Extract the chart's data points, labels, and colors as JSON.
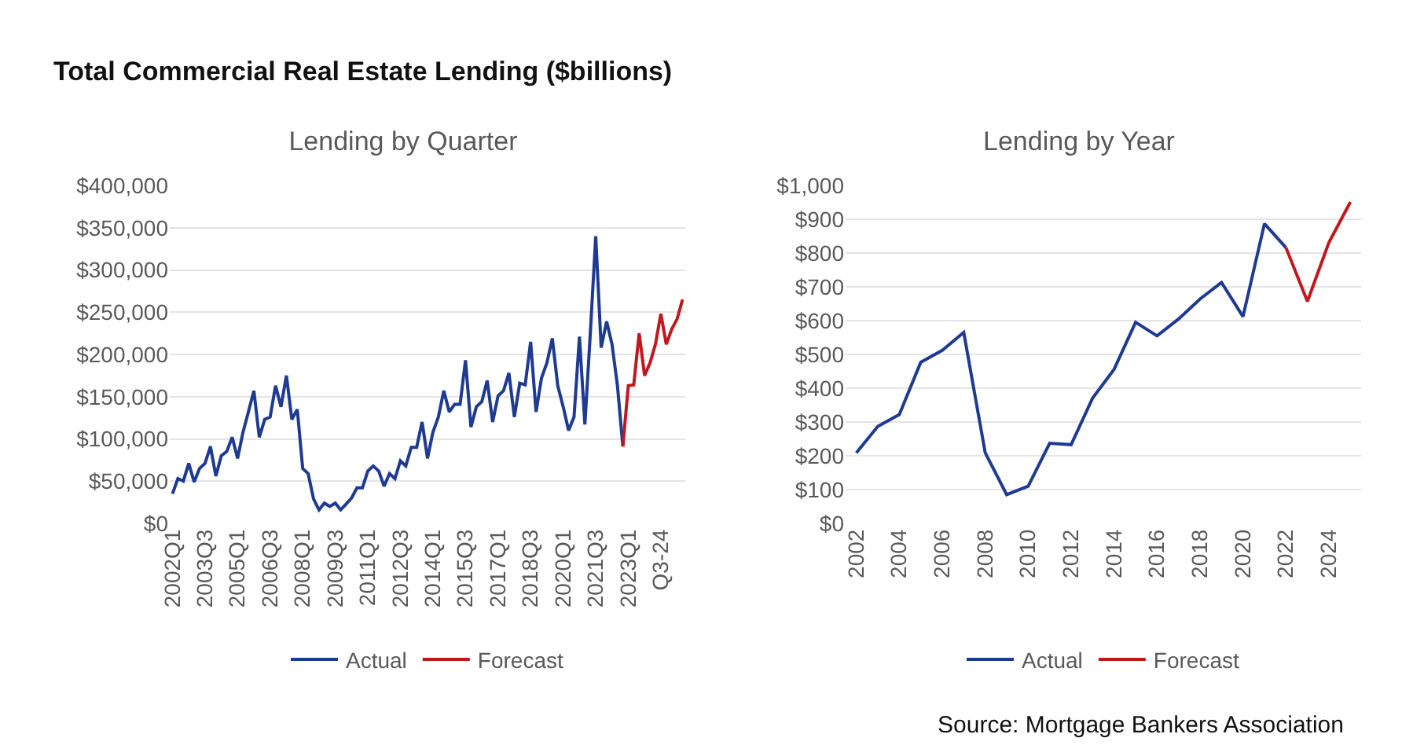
{
  "chart_data": [
    {
      "type": "line",
      "title": "Total Commercial Real Estate Lending ($billions)",
      "subtitle": "Lending by Quarter",
      "categories": [
        "2002Q1",
        null,
        null,
        null,
        null,
        null,
        "2003Q3",
        null,
        null,
        null,
        null,
        null,
        "2005Q1",
        null,
        null,
        null,
        null,
        null,
        "2006Q3",
        null,
        null,
        null,
        null,
        null,
        "2008Q1",
        null,
        null,
        null,
        null,
        null,
        "2009Q3",
        null,
        null,
        null,
        null,
        null,
        "2011Q1",
        null,
        null,
        null,
        null,
        null,
        "2012Q3",
        null,
        null,
        null,
        null,
        null,
        "2014Q1",
        null,
        null,
        null,
        null,
        null,
        "2015Q3",
        null,
        null,
        null,
        null,
        null,
        "2017Q1",
        null,
        null,
        null,
        null,
        null,
        "2018Q3",
        null,
        null,
        null,
        null,
        null,
        "2020Q1",
        null,
        null,
        null,
        null,
        null,
        "2021Q3",
        null,
        null,
        null,
        null,
        null,
        "2023Q1",
        null,
        null,
        null,
        null,
        null,
        "Q3-24",
        null,
        null,
        null,
        null
      ],
      "series": [
        {
          "name": "Actual",
          "color": "#1f3a93",
          "values": [
            35000,
            53000,
            50000,
            71000,
            49000,
            65000,
            71000,
            91000,
            56000,
            80000,
            85000,
            102000,
            77000,
            108000,
            132000,
            157000,
            102000,
            123000,
            126000,
            163000,
            138000,
            175000,
            123000,
            135000,
            65000,
            59000,
            29000,
            16000,
            24000,
            20000,
            24000,
            16000,
            23000,
            30000,
            42000,
            42000,
            62000,
            68000,
            62000,
            44000,
            59000,
            53000,
            74000,
            68000,
            90000,
            90000,
            120000,
            77000,
            108000,
            126000,
            157000,
            132000,
            141000,
            141000,
            193000,
            114000,
            138000,
            144000,
            169000,
            120000,
            151000,
            157000,
            178000,
            126000,
            166000,
            164000,
            215000,
            132000,
            172000,
            190000,
            219000,
            163000,
            138000,
            110000,
            126000,
            221000,
            117000,
            225000,
            340000,
            208000,
            239000,
            212000,
            163000,
            91000,
            null,
            null,
            null,
            null,
            null,
            null,
            null,
            null,
            null,
            null,
            null
          ]
        },
        {
          "name": "Forecast",
          "color": "#c0181f",
          "values": [
            null,
            null,
            null,
            null,
            null,
            null,
            null,
            null,
            null,
            null,
            null,
            null,
            null,
            null,
            null,
            null,
            null,
            null,
            null,
            null,
            null,
            null,
            null,
            null,
            null,
            null,
            null,
            null,
            null,
            null,
            null,
            null,
            null,
            null,
            null,
            null,
            null,
            null,
            null,
            null,
            null,
            null,
            null,
            null,
            null,
            null,
            null,
            null,
            null,
            null,
            null,
            null,
            null,
            null,
            null,
            null,
            null,
            null,
            null,
            null,
            null,
            null,
            null,
            null,
            null,
            null,
            null,
            null,
            null,
            null,
            null,
            null,
            null,
            null,
            null,
            null,
            null,
            null,
            null,
            null,
            null,
            null,
            null,
            91000,
            163000,
            164000,
            225000,
            175000,
            190000,
            212000,
            248000,
            212000,
            230000,
            242000,
            265000
          ]
        }
      ],
      "ylim": [
        0,
        400000
      ],
      "yticks": [
        {
          "value": 0,
          "label": "$0"
        },
        {
          "value": 50000,
          "label": "$50,000"
        },
        {
          "value": 100000,
          "label": "$100,000"
        },
        {
          "value": 150000,
          "label": "$150,000"
        },
        {
          "value": 200000,
          "label": "$200,000"
        },
        {
          "value": 250000,
          "label": "$250,000"
        },
        {
          "value": 300000,
          "label": "$300,000"
        },
        {
          "value": 350000,
          "label": "$350,000"
        },
        {
          "value": 400000,
          "label": "$400,000"
        }
      ],
      "grid": "y",
      "legend": "bottom",
      "marker": "none",
      "line_style": "solid"
    },
    {
      "type": "line",
      "subtitle": "Lending by Year",
      "categories": [
        "2002",
        null,
        "2004",
        null,
        "2006",
        null,
        "2008",
        null,
        "2010",
        null,
        "2012",
        null,
        "2014",
        null,
        "2016",
        null,
        "2018",
        null,
        "2020",
        null,
        "2022",
        null,
        "2024",
        null
      ],
      "series": [
        {
          "name": "Actual",
          "color": "#1f3a93",
          "values": [
            209,
            287,
            322,
            477,
            512,
            565,
            209,
            85,
            110,
            237,
            233,
            371,
            456,
            595,
            555,
            605,
            664,
            713,
            612,
            887,
            816,
            null,
            null,
            null
          ]
        },
        {
          "name": "Forecast",
          "color": "#c0181f",
          "values": [
            null,
            null,
            null,
            null,
            null,
            null,
            null,
            null,
            null,
            null,
            null,
            null,
            null,
            null,
            null,
            null,
            null,
            null,
            null,
            null,
            816,
            657,
            831,
            951
          ]
        }
      ],
      "ylim": [
        0,
        1000
      ],
      "yticks": [
        {
          "value": 0,
          "label": "$0"
        },
        {
          "value": 100,
          "label": "$100"
        },
        {
          "value": 200,
          "label": "$200"
        },
        {
          "value": 300,
          "label": "$300"
        },
        {
          "value": 400,
          "label": "$400"
        },
        {
          "value": 500,
          "label": "$500"
        },
        {
          "value": 600,
          "label": "$600"
        },
        {
          "value": 700,
          "label": "$700"
        },
        {
          "value": 800,
          "label": "$800"
        },
        {
          "value": 900,
          "label": "$900"
        },
        {
          "value": 1000,
          "label": "$1,000"
        }
      ],
      "grid": "y",
      "legend": "bottom",
      "marker": "none",
      "line_style": "solid",
      "annotations": [
        "Source: Mortgage Bankers Association"
      ]
    }
  ]
}
